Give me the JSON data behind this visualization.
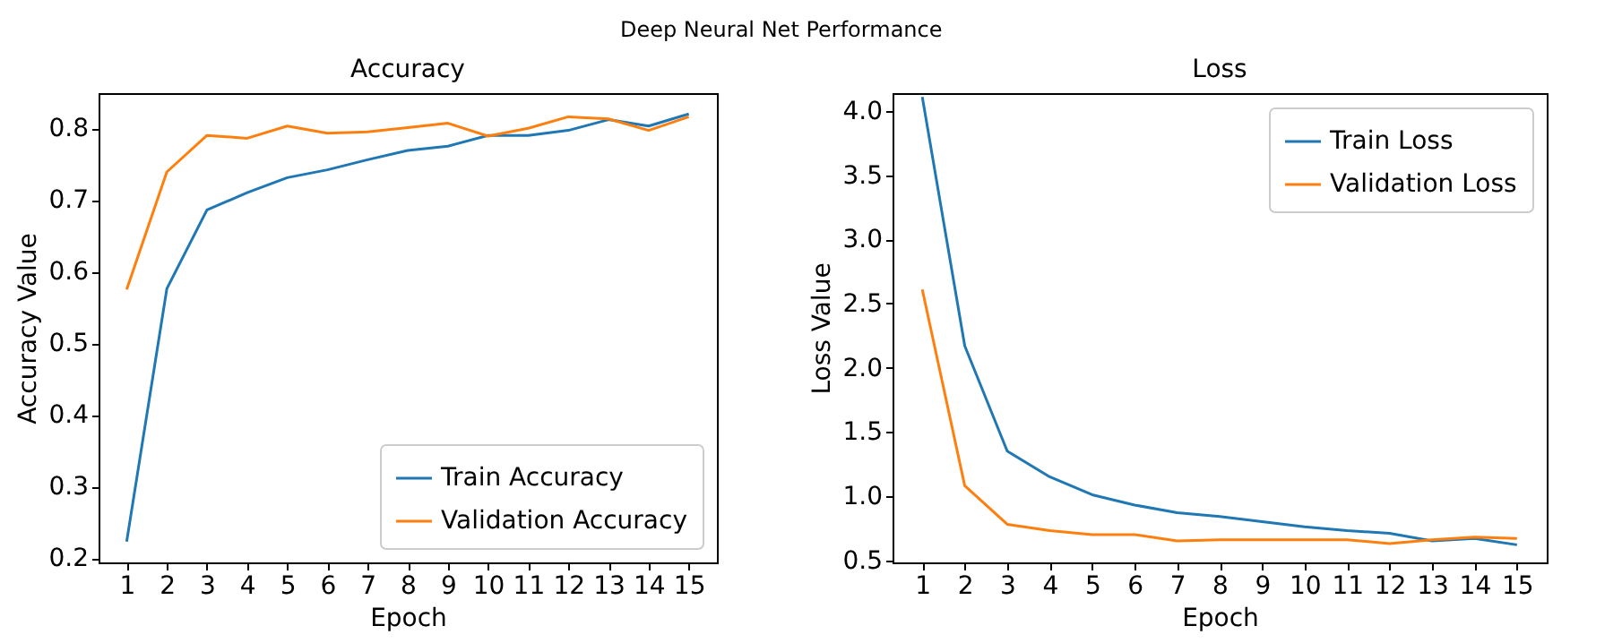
{
  "chart_data": [
    {
      "type": "line",
      "title": "Accuracy",
      "xlabel": "Epoch",
      "ylabel": "Accuracy Value",
      "annotations": [
        "Deep Neural Net Performance"
      ],
      "x": [
        1,
        2,
        3,
        4,
        5,
        6,
        7,
        8,
        9,
        10,
        11,
        12,
        13,
        14,
        15
      ],
      "series": [
        {
          "name": "Train Accuracy",
          "color": "#1f77b4",
          "values": [
            0.223,
            0.576,
            0.686,
            0.71,
            0.731,
            0.742,
            0.756,
            0.769,
            0.775,
            0.79,
            0.79,
            0.797,
            0.812,
            0.803,
            0.82
          ]
        },
        {
          "name": "Validation Accuracy",
          "color": "#ff7f0e",
          "values": [
            0.575,
            0.739,
            0.79,
            0.786,
            0.803,
            0.793,
            0.795,
            0.801,
            0.807,
            0.789,
            0.8,
            0.816,
            0.813,
            0.797,
            0.816
          ]
        }
      ],
      "xlim": [
        0.3,
        15.7
      ],
      "xticks": [
        1,
        2,
        3,
        4,
        5,
        6,
        7,
        8,
        9,
        10,
        11,
        12,
        13,
        14,
        15
      ],
      "ylim": [
        0.194,
        0.849
      ],
      "yticks": [
        0.2,
        0.3,
        0.4,
        0.5,
        0.6,
        0.7,
        0.8
      ],
      "grid": false,
      "legend": "bottom right"
    },
    {
      "type": "line",
      "title": "Loss",
      "xlabel": "Epoch",
      "ylabel": "Loss Value",
      "x": [
        1,
        2,
        3,
        4,
        5,
        6,
        7,
        8,
        9,
        10,
        11,
        12,
        13,
        14,
        15
      ],
      "series": [
        {
          "name": "Train Loss",
          "color": "#1f77b4",
          "values": [
            4.11,
            2.17,
            1.35,
            1.15,
            1.01,
            0.93,
            0.87,
            0.84,
            0.8,
            0.76,
            0.73,
            0.71,
            0.65,
            0.67,
            0.62
          ]
        },
        {
          "name": "Validation Loss",
          "color": "#ff7f0e",
          "values": [
            2.61,
            1.08,
            0.78,
            0.73,
            0.7,
            0.7,
            0.65,
            0.66,
            0.66,
            0.66,
            0.66,
            0.63,
            0.66,
            0.68,
            0.67
          ]
        }
      ],
      "xlim": [
        0.3,
        15.7
      ],
      "xticks": [
        1,
        2,
        3,
        4,
        5,
        6,
        7,
        8,
        9,
        10,
        11,
        12,
        13,
        14,
        15
      ],
      "ylim": [
        0.483,
        4.14
      ],
      "yticks": [
        0.5,
        {
          "value": 1,
          "label": "1.0"
        },
        1.5,
        {
          "value": 2,
          "label": "2.0"
        },
        2.5,
        {
          "value": 3,
          "label": "3.0"
        },
        3.5,
        {
          "value": 4,
          "label": "4.0"
        }
      ],
      "grid": false,
      "legend": "top right"
    }
  ]
}
